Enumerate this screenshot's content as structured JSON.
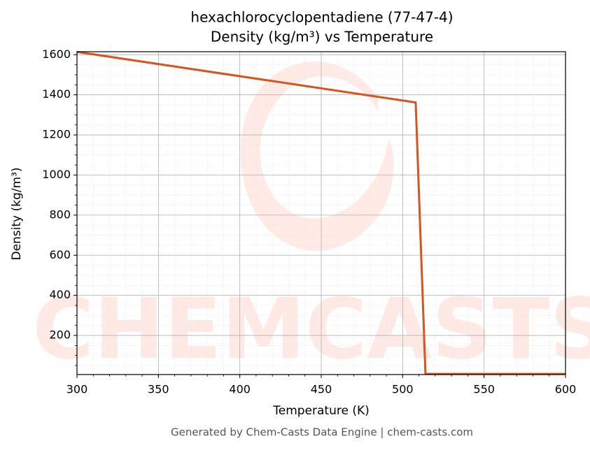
{
  "chart_data": {
    "type": "line",
    "title": "hexachlorocyclopentadiene (77-47-4)",
    "subtitle": "Density (kg/m³) vs Temperature",
    "x_label": "Temperature (K)",
    "y_label": "Density (kg/m³)",
    "watermark": "CHEMCASTS",
    "footer": "Generated by Chem-Casts Data Engine | chem-casts.com",
    "x": [
      300,
      508,
      514,
      600
    ],
    "series": [
      {
        "name": "Density",
        "color": "#d9531e",
        "values": [
          1614,
          1362,
          8,
          8
        ]
      }
    ],
    "xlim": [
      300,
      600
    ],
    "xticks": [
      300,
      350,
      400,
      450,
      500,
      550,
      600
    ],
    "ylim": [
      5,
      1615
    ],
    "yticks": [
      200,
      400,
      600,
      800,
      1000,
      1200,
      1400,
      1600
    ],
    "grid": true,
    "minor_grid": true
  }
}
